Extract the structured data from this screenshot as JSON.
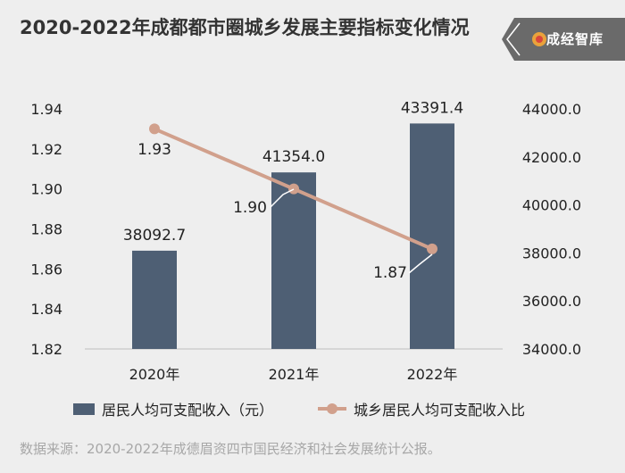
{
  "header": {
    "title": "2020-2022年成都都市圈城乡发展主要指标变化情况",
    "logo_text": "成经智库"
  },
  "source_note": "数据来源：2020-2022年成德眉资四市国民经济和社会发展统计公报。",
  "colors": {
    "bar": "#4e5f74",
    "line": "#d1a08c",
    "background": "#eeeeee",
    "logo_bg": "#6a6a6a"
  },
  "chart_data": {
    "type": "bar",
    "categories": [
      "2020年",
      "2021年",
      "2022年"
    ],
    "series": [
      {
        "name": "居民人均可支配收入（元）",
        "type": "bar",
        "axis": "right",
        "values": [
          38092.7,
          41354.0,
          43391.4
        ],
        "labels": [
          "38092.7",
          "41354.0",
          "43391.4"
        ]
      },
      {
        "name": "城乡居民人均可支配收入比",
        "type": "line",
        "axis": "left",
        "values": [
          1.93,
          1.9,
          1.87
        ],
        "labels": [
          "1.93",
          "1.90",
          "1.87"
        ]
      }
    ],
    "y_left": {
      "min": 1.82,
      "max": 1.94,
      "ticks": [
        "1.94",
        "1.92",
        "1.90",
        "1.88",
        "1.86",
        "1.84",
        "1.82"
      ]
    },
    "y_right": {
      "min": 34000,
      "max": 44000,
      "ticks": [
        "44000.0",
        "42000.0",
        "40000.0",
        "38000.0",
        "36000.0",
        "34000.0"
      ]
    },
    "grid": false,
    "legend_position": "bottom"
  }
}
